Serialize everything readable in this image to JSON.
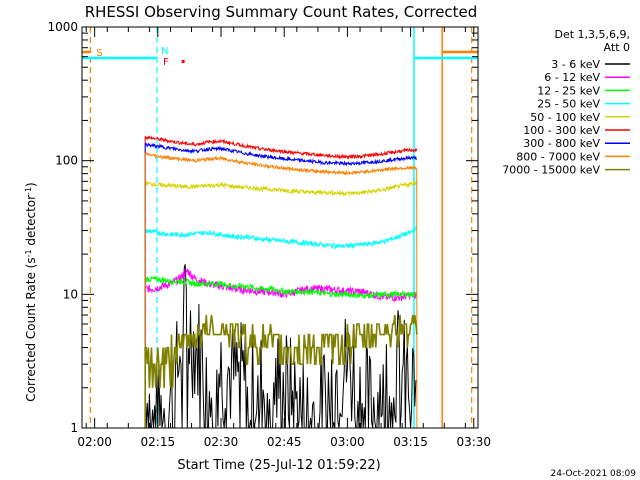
{
  "chart_data": {
    "type": "line",
    "title": "RHESSI Observing Summary Count Rates, Corrected",
    "xlabel": "Start Time (25-Jul-12 01:59:22)",
    "ylabel_main": "Corrected Count Rate (s",
    "ylabel_sup1": "-1",
    "ylabel_mid": " detector",
    "ylabel_sup2": "-1",
    "ylabel_end": ")",
    "footer": "24-Oct-2021 08:09",
    "y_scale": "log",
    "ylim": [
      1,
      1000
    ],
    "x_unit": "minutes since 02:00 UT",
    "xlim": [
      -3,
      91
    ],
    "x_ticks": [
      {
        "value": 0,
        "label": "02:00"
      },
      {
        "value": 15,
        "label": "02:15"
      },
      {
        "value": 30,
        "label": "02:30"
      },
      {
        "value": 45,
        "label": "02:45"
      },
      {
        "value": 60,
        "label": "03:00"
      },
      {
        "value": 75,
        "label": "03:15"
      },
      {
        "value": 90,
        "label": "03:30"
      }
    ],
    "y_ticks": [
      {
        "value": 1,
        "label": "1"
      },
      {
        "value": 10,
        "label": "10"
      },
      {
        "value": 100,
        "label": "100"
      },
      {
        "value": 1000,
        "label": "1000"
      }
    ],
    "legend": {
      "placement": "right",
      "header_line1": "Det 1,3,5,6,9,",
      "header_line2": "Att 0"
    },
    "series": [
      {
        "name": "3 - 6 keV",
        "color": "#000000",
        "x": [
          12,
          13,
          15,
          17,
          19,
          20,
          21,
          22,
          24,
          27,
          30,
          33,
          36,
          39,
          42,
          45,
          48,
          51,
          54,
          57,
          60,
          63,
          66,
          69,
          72,
          75,
          76.5
        ],
        "y": [
          2,
          1.5,
          1.2,
          1.3,
          2,
          3,
          8,
          6,
          4,
          3,
          2.8,
          2.5,
          2.2,
          2,
          2,
          2.2,
          1.5,
          1.2,
          1.6,
          2.5,
          3,
          1.8,
          1.4,
          2.5,
          3,
          2,
          2
        ]
      },
      {
        "name": "6 - 12 keV",
        "color": "#ff00ff",
        "x": [
          12,
          14,
          16,
          18,
          20,
          22,
          24,
          27,
          30,
          33,
          36,
          39,
          42,
          45,
          48,
          51,
          54,
          57,
          60,
          63,
          66,
          69,
          72,
          75,
          76.5
        ],
        "y": [
          11,
          11,
          11.5,
          12,
          13,
          15,
          13,
          12,
          11.5,
          11,
          10.8,
          10.5,
          10.5,
          10,
          10.5,
          11,
          11,
          10.8,
          10.5,
          10.5,
          10,
          9.5,
          9.5,
          9.8,
          9.8
        ]
      },
      {
        "name": "12 - 25 keV",
        "color": "#00ff00",
        "x": [
          12,
          15,
          18,
          21,
          24,
          27,
          30,
          33,
          36,
          39,
          42,
          45,
          48,
          51,
          54,
          57,
          60,
          63,
          66,
          69,
          72,
          75,
          76.5
        ],
        "y": [
          13,
          13,
          12.5,
          12.5,
          12,
          12,
          12,
          11.5,
          11.5,
          11,
          11,
          10.5,
          10.5,
          10.5,
          10.2,
          10,
          10,
          9.8,
          9.8,
          10,
          10,
          10,
          10
        ]
      },
      {
        "name": "25 - 50 keV",
        "color": "#00ffff",
        "x": [
          12,
          15,
          18,
          21,
          24,
          27,
          30,
          33,
          36,
          39,
          42,
          45,
          48,
          51,
          54,
          57,
          60,
          63,
          66,
          69,
          72,
          75,
          76.5
        ],
        "y": [
          30,
          29,
          28,
          28,
          28.5,
          29,
          28,
          27,
          27,
          26,
          25.5,
          25,
          24.5,
          24,
          23.5,
          23,
          23,
          23.5,
          24,
          25,
          27,
          29,
          31
        ]
      },
      {
        "name": "50 - 100 keV",
        "color": "#d4d400",
        "x": [
          12,
          15,
          18,
          21,
          24,
          27,
          30,
          33,
          36,
          39,
          42,
          45,
          48,
          51,
          54,
          57,
          60,
          63,
          66,
          69,
          72,
          75,
          76.5
        ],
        "y": [
          68,
          66,
          65,
          64,
          64,
          65,
          66,
          64,
          63,
          62,
          61,
          60,
          59,
          58,
          58,
          57.5,
          57,
          57.5,
          59,
          61,
          64,
          67,
          69
        ]
      },
      {
        "name": "100 - 300 keV",
        "color": "#ff0000",
        "x": [
          12,
          15,
          18,
          21,
          24,
          27,
          30,
          33,
          36,
          39,
          42,
          45,
          48,
          51,
          54,
          57,
          60,
          63,
          66,
          69,
          72,
          75,
          76.5
        ],
        "y": [
          150,
          145,
          140,
          135,
          132,
          138,
          140,
          134,
          128,
          123,
          120,
          117,
          114,
          112,
          110,
          108,
          107,
          108,
          110,
          113,
          117,
          120,
          120
        ]
      },
      {
        "name": "300 - 800 keV",
        "color": "#0000ff",
        "x": [
          12,
          15,
          18,
          21,
          24,
          27,
          30,
          33,
          36,
          39,
          42,
          45,
          48,
          51,
          54,
          57,
          60,
          63,
          66,
          69,
          72,
          75,
          76.5
        ],
        "y": [
          132,
          128,
          124,
          120,
          118,
          122,
          123,
          118,
          113,
          109,
          106,
          103,
          101,
          99,
          97,
          96,
          95,
          96,
          98,
          100,
          103,
          105,
          105
        ]
      },
      {
        "name": "800 - 7000 keV",
        "color": "#ff8000",
        "x": [
          12,
          15,
          18,
          21,
          24,
          27,
          30,
          33,
          36,
          39,
          42,
          45,
          48,
          51,
          54,
          57,
          60,
          63,
          66,
          69,
          72,
          75,
          76.5
        ],
        "y": [
          112,
          108,
          105,
          102,
          100,
          103,
          104,
          100,
          96,
          93,
          90,
          88,
          86,
          84,
          83,
          82,
          81,
          82,
          84,
          86,
          88,
          88,
          88
        ]
      },
      {
        "name": "7000 - 15000 keV",
        "color": "#808000",
        "x": [
          12,
          14,
          16,
          18,
          20,
          22,
          24,
          27,
          30,
          33,
          36,
          39,
          42,
          45,
          48,
          51,
          54,
          57,
          60,
          63,
          66,
          69,
          72,
          75,
          76.5
        ],
        "y": [
          3,
          3,
          3.2,
          3.5,
          4,
          4.5,
          5,
          5.5,
          5.5,
          5,
          4.5,
          4.5,
          4.5,
          4,
          4,
          4,
          4,
          4.2,
          4.5,
          4.5,
          5,
          5.5,
          5.5,
          5.5,
          5.5
        ]
      }
    ],
    "flags": {
      "saa_label": "S",
      "night_label": "N",
      "flare_label": "F",
      "saa_color": "#ff8000",
      "night_color": "#00ffff",
      "flare_color": "#ff0000",
      "flag_bar_value": 650,
      "saa_dashed_x": [
        -1,
        89.5
      ],
      "saa_solid_x": 82.5,
      "saa_segments": [
        [
          -3,
          -1
        ],
        [
          82.5,
          91
        ]
      ],
      "night_dashed_x": [
        14.8
      ],
      "night_solid_x": 75.8,
      "night_segments": [
        [
          -3,
          14.8
        ],
        [
          75.8,
          91
        ]
      ],
      "flare_x": 21
    }
  }
}
